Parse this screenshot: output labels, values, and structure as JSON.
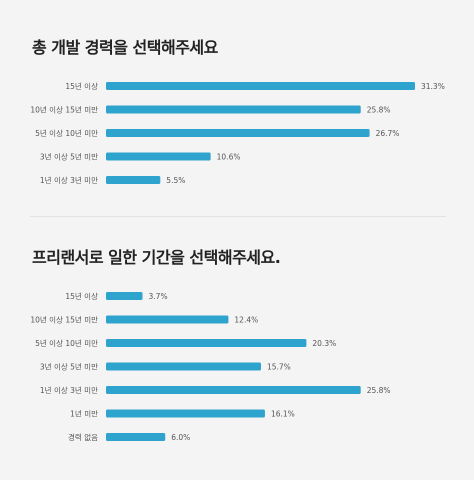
{
  "colors": {
    "bar": "#2ea3cd",
    "background": "#f4f4f4"
  },
  "chart_data": [
    {
      "type": "bar",
      "orientation": "horizontal",
      "title": "총 개발 경력을 선택해주세요",
      "categories": [
        "15년 이상",
        "10년 이상 15년 미만",
        "5년 이상 10년 미만",
        "3년 이상 5년 미만",
        "1년 이상 3년 미만"
      ],
      "values": [
        31.3,
        25.8,
        26.7,
        10.6,
        5.5
      ],
      "value_labels": [
        "31.3%",
        "25.8%",
        "26.7%",
        "10.6%",
        "5.5%"
      ],
      "unit": "%",
      "xlim": [
        0,
        31.3
      ],
      "grid": false
    },
    {
      "type": "bar",
      "orientation": "horizontal",
      "title": "프리랜서로 일한 기간을 선택해주세요.",
      "categories": [
        "15년 이상",
        "10년 이상 15년 미만",
        "5년 이상 10년 미만",
        "3년 이상 5년 미만",
        "1년 이상 3년 미만",
        "1년 미만",
        "경력 없음"
      ],
      "values": [
        3.7,
        12.4,
        20.3,
        15.7,
        25.8,
        16.1,
        6.0
      ],
      "value_labels": [
        "3.7%",
        "12.4%",
        "20.3%",
        "15.7%",
        "25.8%",
        "16.1%",
        "6.0%"
      ],
      "unit": "%",
      "xlim": [
        0,
        31.3
      ],
      "grid": false
    }
  ]
}
